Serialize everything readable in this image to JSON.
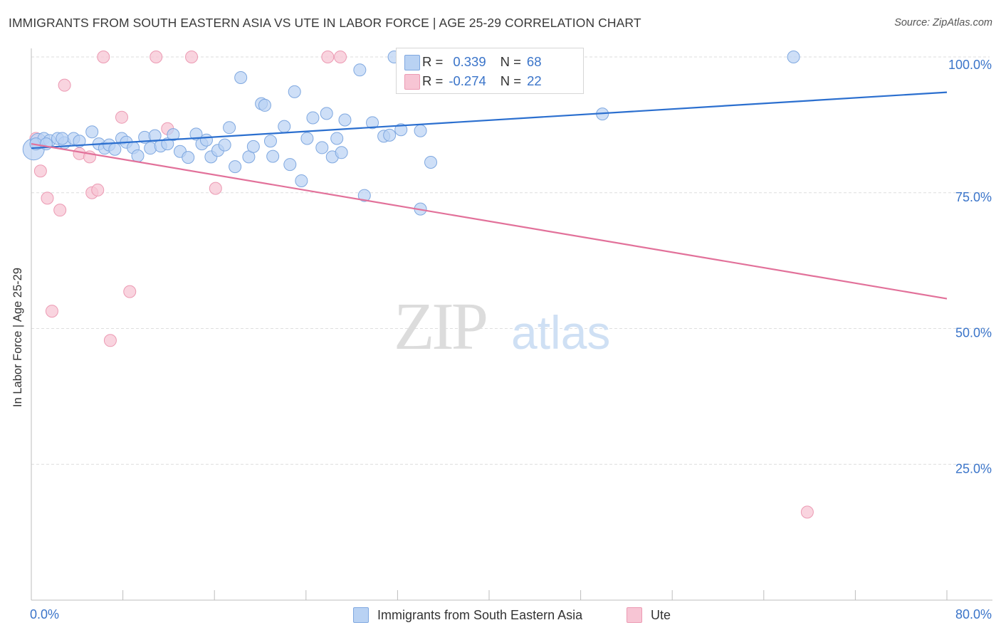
{
  "title": "IMMIGRANTS FROM SOUTH EASTERN ASIA VS UTE IN LABOR FORCE | AGE 25-29 CORRELATION CHART",
  "source": "Source: ZipAtlas.com",
  "watermark": {
    "zip": "ZIP",
    "atlas": "atlas"
  },
  "colors": {
    "blue_fill": "#b9d2f3",
    "blue_stroke": "#7fa8e0",
    "blue_line": "#2b6fcf",
    "pink_fill": "#f7c5d4",
    "pink_stroke": "#ec9ab3",
    "pink_line": "#e2719a",
    "axis_value": "#3a74c9",
    "grid": "#dedede"
  },
  "legend_top": [
    {
      "r_label": "R =",
      "r_value": "0.339",
      "n_label": "N =",
      "n_value": "68",
      "color": "#b9d2f3"
    },
    {
      "r_label": "R =",
      "r_value": "-0.274",
      "n_label": "N =",
      "n_value": "22",
      "color": "#f7c5d4"
    }
  ],
  "legend_bottom": [
    {
      "label": "Immigrants from South Eastern Asia",
      "color": "#b9d2f3"
    },
    {
      "label": "Ute",
      "color": "#f7c5d4"
    }
  ],
  "chart_data": {
    "type": "scatter",
    "title": "IMMIGRANTS FROM SOUTH EASTERN ASIA VS UTE IN LABOR FORCE | AGE 25-29 CORRELATION CHART",
    "xlabel": "",
    "ylabel": "In Labor Force | Age 25-29",
    "xlim": [
      0,
      80
    ],
    "ylim": [
      0,
      105
    ],
    "x_tick_labels": [
      "0.0%",
      "80.0%"
    ],
    "y_ticks": [
      25,
      50,
      75,
      100
    ],
    "y_tick_labels": [
      "25.0%",
      "50.0%",
      "75.0%",
      "100.0%"
    ],
    "grid": true,
    "legend": "bottom",
    "series": [
      {
        "name": "Immigrants from South Eastern Asia",
        "r": 0.339,
        "n": 68,
        "trend": {
          "x": [
            0,
            80
          ],
          "y": [
            83.2,
            93.5
          ]
        },
        "points": [
          [
            0.2,
            83.0
          ],
          [
            0.6,
            84.5
          ],
          [
            1.1,
            85.0
          ],
          [
            1.6,
            84.6
          ],
          [
            2.3,
            85.0
          ],
          [
            2.9,
            84.2
          ],
          [
            3.7,
            85.0
          ],
          [
            4.2,
            84.5
          ],
          [
            5.3,
            86.2
          ],
          [
            5.9,
            84.0
          ],
          [
            6.4,
            83.2
          ],
          [
            6.8,
            83.8
          ],
          [
            7.3,
            83.0
          ],
          [
            7.9,
            85.0
          ],
          [
            8.3,
            84.3
          ],
          [
            8.9,
            83.3
          ],
          [
            9.3,
            81.8
          ],
          [
            9.9,
            85.2
          ],
          [
            10.4,
            83.2
          ],
          [
            10.8,
            85.5
          ],
          [
            11.3,
            83.6
          ],
          [
            11.9,
            84.0
          ],
          [
            12.4,
            85.7
          ],
          [
            13.0,
            82.6
          ],
          [
            13.7,
            81.5
          ],
          [
            14.4,
            85.8
          ],
          [
            14.9,
            84.0
          ],
          [
            15.3,
            84.7
          ],
          [
            15.7,
            81.6
          ],
          [
            16.3,
            82.8
          ],
          [
            16.9,
            83.8
          ],
          [
            17.3,
            87.0
          ],
          [
            17.8,
            79.8
          ],
          [
            18.3,
            96.2
          ],
          [
            19.0,
            81.6
          ],
          [
            19.4,
            83.5
          ],
          [
            20.1,
            91.4
          ],
          [
            20.4,
            91.1
          ],
          [
            20.9,
            84.5
          ],
          [
            21.1,
            81.7
          ],
          [
            22.1,
            87.2
          ],
          [
            22.6,
            80.2
          ],
          [
            23.0,
            93.6
          ],
          [
            23.6,
            77.2
          ],
          [
            24.1,
            85.0
          ],
          [
            24.6,
            88.8
          ],
          [
            25.4,
            83.3
          ],
          [
            25.8,
            89.6
          ],
          [
            26.3,
            81.6
          ],
          [
            26.7,
            85.0
          ],
          [
            27.1,
            82.4
          ],
          [
            27.4,
            88.4
          ],
          [
            28.7,
            97.6
          ],
          [
            29.1,
            74.5
          ],
          [
            29.8,
            87.9
          ],
          [
            30.8,
            85.4
          ],
          [
            31.3,
            85.6
          ],
          [
            31.7,
            100.0
          ],
          [
            32.3,
            86.6
          ],
          [
            34.0,
            86.4
          ],
          [
            34.0,
            72.0
          ],
          [
            34.9,
            80.6
          ],
          [
            36.3,
            94.5
          ],
          [
            49.9,
            89.5
          ],
          [
            66.6,
            100.0
          ],
          [
            0.4,
            84.0
          ],
          [
            1.3,
            84.0
          ],
          [
            2.7,
            85.0
          ]
        ]
      },
      {
        "name": "Ute",
        "r": -0.274,
        "n": 22,
        "trend": {
          "x": [
            0,
            80
          ],
          "y": [
            84.0,
            55.5
          ]
        },
        "points": [
          [
            0.4,
            85.0
          ],
          [
            0.8,
            79.0
          ],
          [
            1.4,
            74.0
          ],
          [
            2.5,
            71.8
          ],
          [
            2.9,
            94.8
          ],
          [
            4.2,
            82.2
          ],
          [
            5.1,
            81.6
          ],
          [
            5.3,
            75.0
          ],
          [
            5.8,
            75.5
          ],
          [
            6.3,
            100.0
          ],
          [
            7.9,
            88.9
          ],
          [
            10.9,
            100.0
          ],
          [
            11.9,
            86.8
          ],
          [
            14.0,
            100.0
          ],
          [
            16.1,
            75.8
          ],
          [
            25.9,
            100.0
          ],
          [
            27.0,
            100.0
          ],
          [
            44.4,
            100.0
          ],
          [
            1.8,
            53.2
          ],
          [
            8.6,
            56.8
          ],
          [
            6.9,
            47.8
          ],
          [
            67.8,
            16.2
          ]
        ]
      }
    ]
  }
}
